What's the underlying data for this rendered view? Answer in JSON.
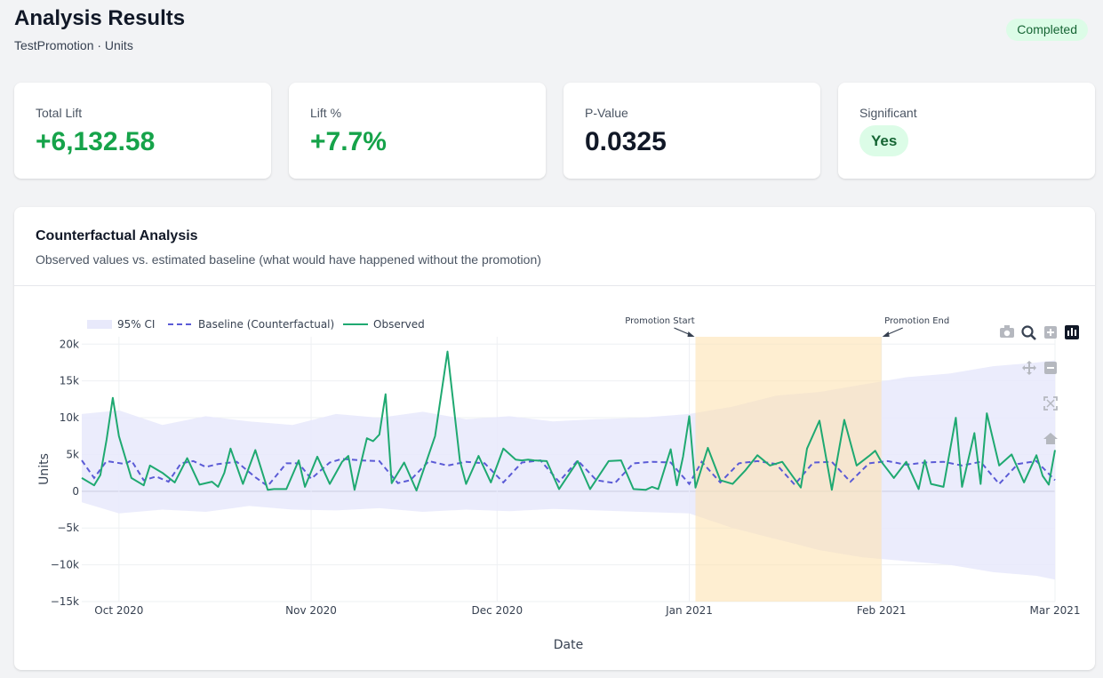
{
  "header": {
    "title": "Analysis Results",
    "subtitle": "TestPromotion · Units",
    "status": "Completed"
  },
  "metrics": [
    {
      "label": "Total Lift",
      "value": "+6,132.58",
      "tone": "positive"
    },
    {
      "label": "Lift %",
      "value": "+7.7%",
      "tone": "positive"
    },
    {
      "label": "P-Value",
      "value": "0.0325",
      "tone": "neutral"
    },
    {
      "label": "Significant",
      "value": "Yes",
      "tone": "pill"
    }
  ],
  "chart": {
    "title": "Counterfactual Analysis",
    "subtitle": "Observed values vs. estimated baseline (what would have happened without the promotion)"
  },
  "chart_data": {
    "type": "line",
    "xlabel": "Date",
    "ylabel": "Units",
    "x_start": "2020-09-25",
    "x_end": "2021-03-01",
    "ylim": [
      -15000,
      21000
    ],
    "yticks": [
      20000,
      15000,
      10000,
      5000,
      0,
      -5000,
      -10000,
      -15000
    ],
    "ytick_labels": [
      "20k",
      "15k",
      "10k",
      "5k",
      "0",
      "−5k",
      "−10k",
      "−15k"
    ],
    "xticks": [
      "2020-10-01",
      "2020-11-01",
      "2020-12-01",
      "2021-01-01",
      "2021-02-01",
      "2021-03-01"
    ],
    "xtick_labels": [
      "Oct 2020",
      "Nov 2020",
      "Dec 2020",
      "Jan 2021",
      "Feb 2021",
      "Mar 2021"
    ],
    "grid": true,
    "legend": {
      "placement": "top-left",
      "entries": [
        "95% CI",
        "Baseline (Counterfactual)",
        "Observed"
      ]
    },
    "promotion": {
      "start": "2021-01-02",
      "end": "2021-02-01",
      "start_label": "Promotion Start",
      "end_label": "Promotion End",
      "color": "#fde2b3"
    },
    "colors": {
      "observed": "#1fa971",
      "baseline": "#5b5bd6",
      "ci": "#e8e9fb"
    },
    "series": [
      {
        "name": "Observed",
        "x": [
          "2020-09-25",
          "2020-09-27",
          "2020-09-28",
          "2020-09-29",
          "2020-09-30",
          "2020-10-01",
          "2020-10-03",
          "2020-10-05",
          "2020-10-06",
          "2020-10-08",
          "2020-10-10",
          "2020-10-12",
          "2020-10-14",
          "2020-10-16",
          "2020-10-17",
          "2020-10-18",
          "2020-10-19",
          "2020-10-21",
          "2020-10-23",
          "2020-10-25",
          "2020-10-26",
          "2020-10-28",
          "2020-10-30",
          "2020-10-31",
          "2020-11-02",
          "2020-11-04",
          "2020-11-06",
          "2020-11-07",
          "2020-11-08",
          "2020-11-10",
          "2020-11-11",
          "2020-11-12",
          "2020-11-13",
          "2020-11-14",
          "2020-11-16",
          "2020-11-18",
          "2020-11-21",
          "2020-11-23",
          "2020-11-25",
          "2020-11-26",
          "2020-11-28",
          "2020-11-30",
          "2020-12-02",
          "2020-12-04",
          "2020-12-05",
          "2020-12-06",
          "2020-12-07",
          "2020-12-09",
          "2020-12-11",
          "2020-12-14",
          "2020-12-16",
          "2020-12-19",
          "2020-12-21",
          "2020-12-23",
          "2020-12-25",
          "2020-12-26",
          "2020-12-27",
          "2020-12-29",
          "2020-12-30",
          "2020-12-31",
          "2021-01-01",
          "2021-01-02",
          "2021-01-04",
          "2021-01-06",
          "2021-01-08",
          "2021-01-10",
          "2021-01-12",
          "2021-01-14",
          "2021-01-16",
          "2021-01-19",
          "2021-01-20",
          "2021-01-22",
          "2021-01-24",
          "2021-01-26",
          "2021-01-28",
          "2021-01-30",
          "2021-01-31",
          "2021-02-01",
          "2021-02-03",
          "2021-02-05",
          "2021-02-07",
          "2021-02-08",
          "2021-02-09",
          "2021-02-11",
          "2021-02-13",
          "2021-02-14",
          "2021-02-16",
          "2021-02-17",
          "2021-02-18",
          "2021-02-20",
          "2021-02-22",
          "2021-02-24",
          "2021-02-26",
          "2021-02-27",
          "2021-02-28",
          "2021-03-01"
        ],
        "values": [
          1800,
          800,
          2200,
          7000,
          12700,
          7500,
          1800,
          800,
          3500,
          2500,
          1200,
          4500,
          900,
          1300,
          600,
          2500,
          5800,
          1000,
          5600,
          200,
          300,
          300,
          4200,
          600,
          4700,
          1000,
          4000,
          4800,
          200,
          7200,
          6800,
          7700,
          13200,
          1100,
          3900,
          100,
          7500,
          19000,
          4200,
          1000,
          4800,
          1200,
          5800,
          4300,
          4200,
          4300,
          4200,
          4100,
          300,
          4100,
          300,
          4100,
          4200,
          300,
          200,
          600,
          300,
          5700,
          800,
          4700,
          10200,
          500,
          5900,
          1500,
          1000,
          2800,
          4900,
          3500,
          4000,
          500,
          5800,
          9600,
          200,
          9700,
          3500,
          4800,
          5500,
          4000,
          1800,
          4000,
          300,
          4200,
          1000,
          600,
          10000,
          600,
          7900,
          1000,
          10600,
          3500,
          5000,
          1200,
          4900,
          2100,
          900,
          5600
        ]
      },
      {
        "name": "Baseline (Counterfactual)",
        "x": [
          "2020-09-25",
          "2020-09-27",
          "2020-09-29",
          "2020-10-02",
          "2020-10-03",
          "2020-10-05",
          "2020-10-07",
          "2020-10-09",
          "2020-10-11",
          "2020-10-13",
          "2020-10-15",
          "2020-10-17",
          "2020-10-20",
          "2020-10-23",
          "2020-10-25",
          "2020-10-28",
          "2020-10-30",
          "2020-11-01",
          "2020-11-04",
          "2020-11-06",
          "2020-11-09",
          "2020-11-12",
          "2020-11-15",
          "2020-11-17",
          "2020-11-20",
          "2020-11-23",
          "2020-11-26",
          "2020-11-29",
          "2020-12-02",
          "2020-12-05",
          "2020-12-08",
          "2020-12-11",
          "2020-12-14",
          "2020-12-17",
          "2020-12-20",
          "2020-12-23",
          "2020-12-26",
          "2020-12-29",
          "2021-01-01",
          "2021-01-03",
          "2021-01-06",
          "2021-01-09",
          "2021-01-12",
          "2021-01-15",
          "2021-01-18",
          "2021-01-21",
          "2021-01-24",
          "2021-01-27",
          "2021-01-30",
          "2021-02-02",
          "2021-02-05",
          "2021-02-08",
          "2021-02-11",
          "2021-02-14",
          "2021-02-17",
          "2021-02-20",
          "2021-02-23",
          "2021-02-26",
          "2021-03-01"
        ],
        "values": [
          4200,
          1800,
          4100,
          3700,
          4200,
          1500,
          2000,
          1300,
          3800,
          4100,
          3300,
          3700,
          4000,
          1900,
          700,
          3800,
          3800,
          1700,
          3900,
          4400,
          4200,
          4100,
          1100,
          1500,
          4100,
          3500,
          4000,
          3800,
          1200,
          3900,
          4200,
          1300,
          4200,
          1500,
          1100,
          3800,
          4000,
          3900,
          1000,
          4000,
          1200,
          3800,
          4100,
          3700,
          900,
          3900,
          4000,
          1300,
          3800,
          4100,
          3600,
          3900,
          4000,
          3500,
          4000,
          1000,
          3700,
          4100,
          1500
        ]
      },
      {
        "name": "95% CI",
        "x": [
          "2020-09-25",
          "2020-10-01",
          "2020-10-08",
          "2020-10-15",
          "2020-10-22",
          "2020-10-29",
          "2020-11-05",
          "2020-11-12",
          "2020-11-19",
          "2020-11-26",
          "2020-12-03",
          "2020-12-10",
          "2020-12-17",
          "2020-12-24",
          "2021-01-01",
          "2021-01-08",
          "2021-01-15",
          "2021-01-22",
          "2021-01-29",
          "2021-02-05",
          "2021-02-12",
          "2021-02-19",
          "2021-02-26",
          "2021-03-01"
        ],
        "upper": [
          10500,
          11000,
          9000,
          10200,
          9500,
          9000,
          10500,
          10000,
          10800,
          9800,
          10200,
          9500,
          9800,
          10000,
          10500,
          11500,
          13000,
          13500,
          14500,
          15500,
          16000,
          17000,
          17500,
          17800
        ],
        "lower": [
          -1500,
          -3000,
          -2500,
          -2800,
          -2000,
          -2500,
          -2600,
          -2300,
          -2800,
          -2500,
          -2700,
          -2400,
          -2600,
          -2800,
          -3000,
          -5000,
          -6500,
          -8000,
          -9000,
          -9500,
          -10000,
          -11000,
          -11500,
          -12000
        ]
      }
    ]
  },
  "modebar": {
    "icons": [
      "camera-icon",
      "zoom-icon",
      "zoom-in-icon",
      "bar-chart-icon",
      "pan-icon",
      "zoom-out-icon",
      "autoscale-icon",
      "home-icon"
    ]
  }
}
